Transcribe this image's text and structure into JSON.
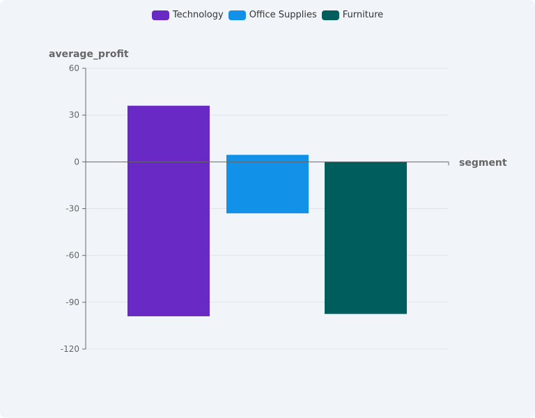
{
  "legend": {
    "technology": "Technology",
    "office_supplies": "Office Supplies",
    "furniture": "Furniture"
  },
  "chart_data": {
    "type": "bar",
    "ylabel": "average_profit",
    "xlabel": "segment",
    "ylim": [
      -120,
      60
    ],
    "yticks": [
      60,
      30,
      0,
      -30,
      -60,
      -90,
      -120
    ],
    "ytick_labels": [
      "60",
      "30",
      "0",
      "-30",
      "-60",
      "-90",
      "-120"
    ],
    "grid": true,
    "legend_position": "top-center",
    "series": [
      {
        "name": "Technology",
        "color": "#6929c4",
        "high": 36,
        "low": -99
      },
      {
        "name": "Office Supplies",
        "color": "#1192e8",
        "high": 4.5,
        "low": -33
      },
      {
        "name": "Furniture",
        "color": "#005d5d",
        "high": 0,
        "low": -97.5
      }
    ]
  }
}
